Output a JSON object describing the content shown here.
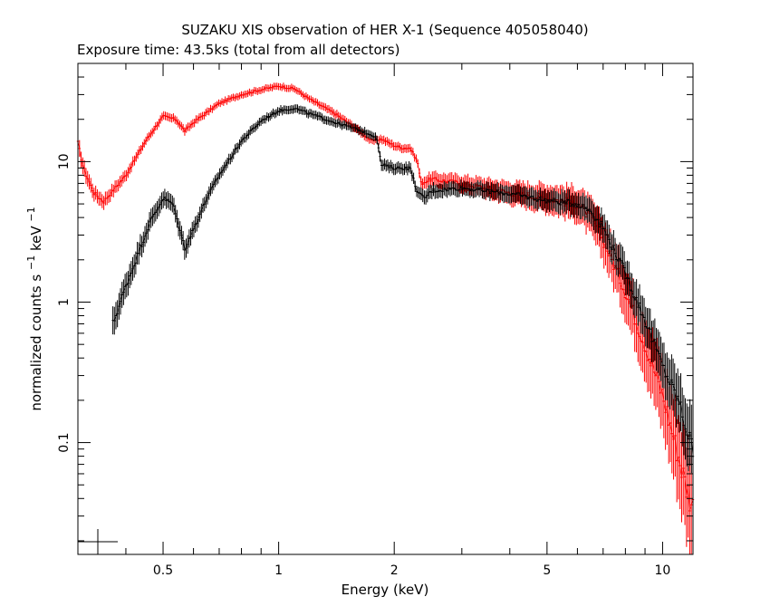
{
  "chart_data": {
    "type": "line",
    "title": "SUZAKU XIS observation of HER X-1 (Sequence 405058040)",
    "subtitle": "Exposure time: 43.5ks (total from all detectors)",
    "xlabel": "Energy (keV)",
    "ylabel_main": "normalized counts s",
    "ylabel_mid": " keV",
    "ylabel_exp": "−1",
    "x_scale": "log",
    "y_scale": "log",
    "xlim": [
      0.3,
      12
    ],
    "ylim": [
      0.016,
      50
    ],
    "x_ticks": [
      {
        "value": 0.5,
        "label": "0.5"
      },
      {
        "value": 1,
        "label": "1"
      },
      {
        "value": 2,
        "label": "2"
      },
      {
        "value": 5,
        "label": "5"
      },
      {
        "value": 10,
        "label": "10"
      }
    ],
    "y_ticks": [
      {
        "value": 0.1,
        "label": "0.1"
      },
      {
        "value": 1,
        "label": "1"
      },
      {
        "value": 10,
        "label": "10"
      }
    ],
    "grid": false,
    "legend": "none",
    "series": [
      {
        "color": "#ff0000",
        "x": [
          0.3,
          0.31,
          0.33,
          0.35,
          0.4,
          0.45,
          0.5,
          0.54,
          0.57,
          0.6,
          0.7,
          0.8,
          0.9,
          1.0,
          1.1,
          1.2,
          1.4,
          1.6,
          1.75,
          1.85,
          2.0,
          2.1,
          2.2,
          2.3,
          2.35,
          2.5,
          3.0,
          4.0,
          5.0,
          6.0,
          6.5,
          7.0,
          8.0,
          9.0,
          10.0,
          11.0,
          11.5,
          12.0
        ],
        "y": [
          13.5,
          9,
          6,
          5.2,
          8,
          14,
          21,
          20,
          16.5,
          19,
          26,
          30,
          32.5,
          34.5,
          33,
          28,
          22,
          17,
          14,
          14.5,
          13,
          12.5,
          12.5,
          10,
          7,
          7.5,
          7,
          6,
          5.5,
          5,
          4,
          2.8,
          1.2,
          0.5,
          0.22,
          0.08,
          0.05,
          0.035
        ],
        "err": [
          0.06,
          0.06,
          0.05,
          0.05,
          0.04,
          0.03,
          0.03,
          0.03,
          0.03,
          0.03,
          0.025,
          0.025,
          0.025,
          0.025,
          0.025,
          0.025,
          0.03,
          0.03,
          0.03,
          0.03,
          0.03,
          0.03,
          0.03,
          0.03,
          0.04,
          0.05,
          0.06,
          0.08,
          0.1,
          0.12,
          0.13,
          0.15,
          0.18,
          0.22,
          0.26,
          0.3,
          0.35,
          0.4
        ]
      },
      {
        "color": "#000000",
        "x": [
          0.37,
          0.4,
          0.43,
          0.46,
          0.5,
          0.53,
          0.57,
          0.6,
          0.65,
          0.7,
          0.8,
          0.9,
          1.0,
          1.1,
          1.2,
          1.4,
          1.6,
          1.8,
          1.85,
          2.0,
          2.2,
          2.3,
          2.4,
          2.5,
          3.0,
          4.0,
          5.0,
          6.0,
          6.5,
          7.0,
          8.0,
          9.0,
          10.0,
          11.0,
          11.5,
          12.0
        ],
        "y": [
          0.7,
          1.3,
          2.2,
          3.6,
          5.5,
          5,
          2.4,
          3.3,
          5.5,
          8,
          14,
          19.5,
          23,
          24,
          22,
          19,
          17,
          15,
          9.5,
          9,
          9,
          6,
          5.5,
          6.2,
          6.5,
          5.9,
          5.3,
          5,
          4.5,
          3.4,
          1.6,
          0.75,
          0.35,
          0.2,
          0.13,
          0.09
        ],
        "err": [
          0.1,
          0.09,
          0.08,
          0.07,
          0.06,
          0.06,
          0.07,
          0.06,
          0.05,
          0.04,
          0.035,
          0.03,
          0.03,
          0.03,
          0.03,
          0.03,
          0.03,
          0.03,
          0.04,
          0.04,
          0.04,
          0.04,
          0.05,
          0.05,
          0.05,
          0.06,
          0.07,
          0.08,
          0.09,
          0.1,
          0.12,
          0.14,
          0.16,
          0.2,
          0.22,
          0.25
        ]
      }
    ]
  }
}
